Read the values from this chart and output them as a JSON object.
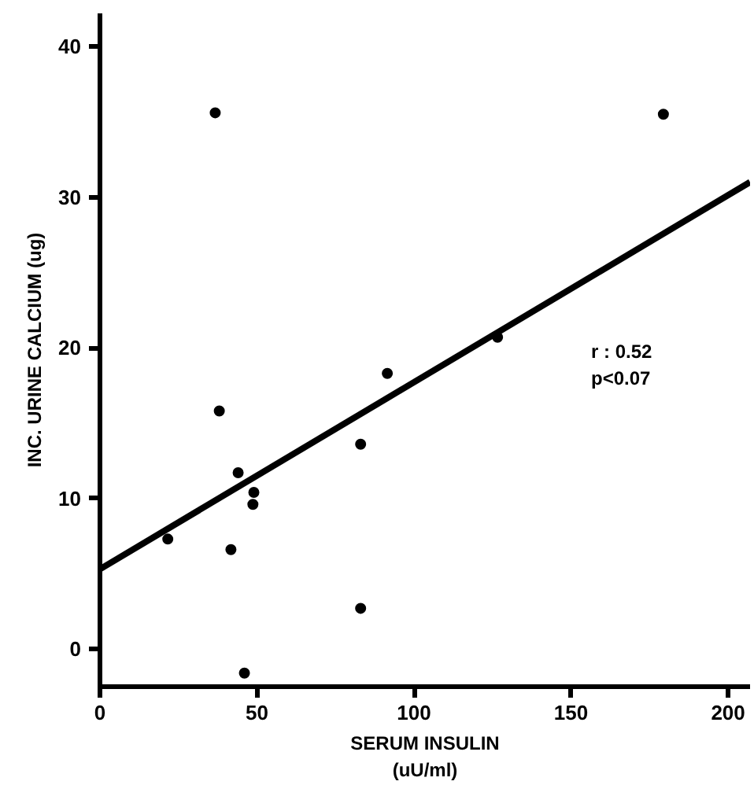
{
  "chart_data": {
    "type": "scatter",
    "xlabel": "SERUM INSULIN\n(uU/ml)",
    "ylabel": "INC. URINE CALCIUM (ug)",
    "x": [
      36.7,
      38,
      21.6,
      41.7,
      44,
      49,
      48.7,
      83,
      83,
      91.5,
      126.6,
      179.4,
      46
    ],
    "series": [
      {
        "color": "#000000",
        "marker": "circle",
        "values": [
          35.6,
          15.8,
          7.3,
          6.6,
          11.7,
          10.4,
          9.6,
          13.6,
          2.7,
          18.3,
          20.7,
          35.5,
          -1.6
        ]
      },
      {
        "type": "line",
        "color": "#000000",
        "x": [
          0,
          207
        ],
        "values": [
          5.3,
          31.0
        ]
      }
    ],
    "annotations": [
      "r : 0.52",
      "p<0.07"
    ],
    "xlim": [
      0,
      207
    ],
    "ylim": [
      -2.5,
      42.2
    ],
    "xticks": [
      0,
      50,
      100,
      150,
      200
    ],
    "yticks": [
      0,
      10,
      20,
      30,
      40
    ],
    "grid": false
  }
}
